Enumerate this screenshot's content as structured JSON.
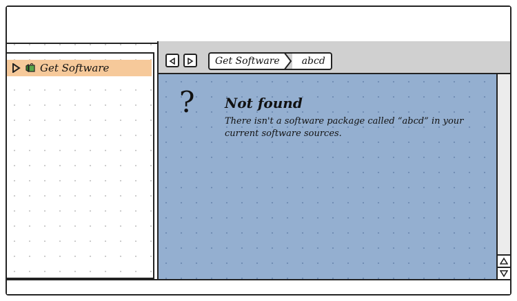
{
  "sidebar": {
    "items": [
      {
        "label": "Get Software",
        "icon": "software-center-icon",
        "expander": "triangle-right-icon",
        "selected": true
      }
    ]
  },
  "nav": {
    "back_icon": "triangle-left-icon",
    "forward_icon": "triangle-right-icon",
    "breadcrumbs": [
      "Get Software",
      "abcd"
    ]
  },
  "message": {
    "icon": "?",
    "title": "Not found",
    "body": "There isn't a software package called “abcd” in your current software sources."
  },
  "scrollbar": {
    "up_icon": "triangle-up-icon",
    "down_icon": "triangle-down-icon"
  },
  "colors": {
    "selected_bg": "#f6c99a",
    "content_bg": "#94afd0",
    "nav_bg": "#d0d0d0",
    "icon_green": "#3c8d2f"
  }
}
